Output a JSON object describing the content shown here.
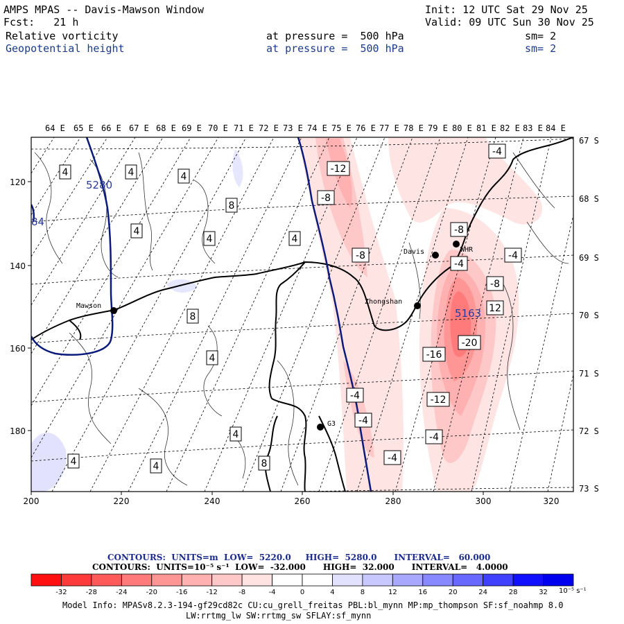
{
  "header": {
    "title": "AMPS MPAS -- Davis-Mawson Window",
    "fcst": "Fcst:   21 h",
    "init": "Init: 12 UTC Sat 29 Nov 25",
    "valid": "Valid: 09 UTC Sun 30 Nov 25",
    "field1": {
      "name": "Relative vorticity",
      "level": "at pressure =  500 hPa",
      "sm": "sm= 2"
    },
    "field2": {
      "name": "Geopotential height",
      "level": "at pressure =  500 hPa",
      "sm": "sm= 2"
    }
  },
  "map": {
    "lon_labels": [
      "64 E",
      "65 E",
      "66 E",
      "67 E",
      "68 E",
      "69 E",
      "70 E",
      "71 E",
      "72 E",
      "73 E",
      "74 E",
      "75 E",
      "76 E",
      "77 E",
      "78 E",
      "79 E",
      "80 E",
      "81 E",
      "82 E",
      "83 E",
      "84 E"
    ],
    "lat_labels": [
      "67 S",
      "68 S",
      "69 S",
      "70 S",
      "71 S",
      "72 S",
      "73 S"
    ],
    "x_ticks": [
      "200",
      "220",
      "240",
      "260",
      "280",
      "300",
      "320"
    ],
    "y_ticks": [
      "120",
      "140",
      "160",
      "180"
    ],
    "stations": [
      "Mawson",
      "Davis",
      "WHR",
      "Zhongshan",
      "G3"
    ],
    "height_labels": [
      "5280",
      "5163",
      "84"
    ],
    "vort_labels": [
      "4",
      "4",
      "4",
      "8",
      "4",
      "4",
      "4",
      "8",
      "4",
      "4",
      "4",
      "4",
      "8",
      "-12",
      "-8",
      "-8",
      "-4",
      "-4",
      "-8",
      "-4",
      "-8",
      "12",
      "-20",
      "-16",
      "-12",
      "-4",
      "-4",
      "-4",
      "-4"
    ],
    "colors": {
      "height_contour": "#0a1a7a",
      "coast": "#000000",
      "graticule": "#000000"
    }
  },
  "legend": {
    "line1": {
      "label": "CONTOURS:  UNITS=m  LOW=  5220.0     HIGH=  5280.0      INTERVAL=   60.000"
    },
    "line2": {
      "label": "CONTOURS:  UNITS=10⁻⁵ s⁻¹  LOW=  -32.000      HIGH=  32.000      INTERVAL=   4.0000"
    },
    "ticks": [
      "-32",
      "-28",
      "-24",
      "-20",
      "-16",
      "-12",
      "-8",
      "-4",
      "0",
      "4",
      "8",
      "12",
      "16",
      "20",
      "24",
      "28",
      "32"
    ],
    "unit": "10⁻⁵ s⁻¹",
    "colors": [
      "#ff1010",
      "#ff3a3a",
      "#ff5a5a",
      "#ff7a7a",
      "#ff9696",
      "#ffb0b0",
      "#ffc8c8",
      "#ffe2e2",
      "#ffffff",
      "#ffffff",
      "#e2e2ff",
      "#c8c8ff",
      "#a8a8ff",
      "#8888ff",
      "#6868ff",
      "#4040ff",
      "#1010ff",
      "#0000ee"
    ]
  },
  "footer": {
    "line1": "Model Info: MPASv8.2.3-194-gf29cd82c CU:cu_grell_freitas PBL:bl_mynn MP:mp_thompson SF:sf_noahmp 8.0",
    "line2": "LW:rrtmg_lw SW:rrtmg_sw SFLAY:sf_mynn"
  }
}
